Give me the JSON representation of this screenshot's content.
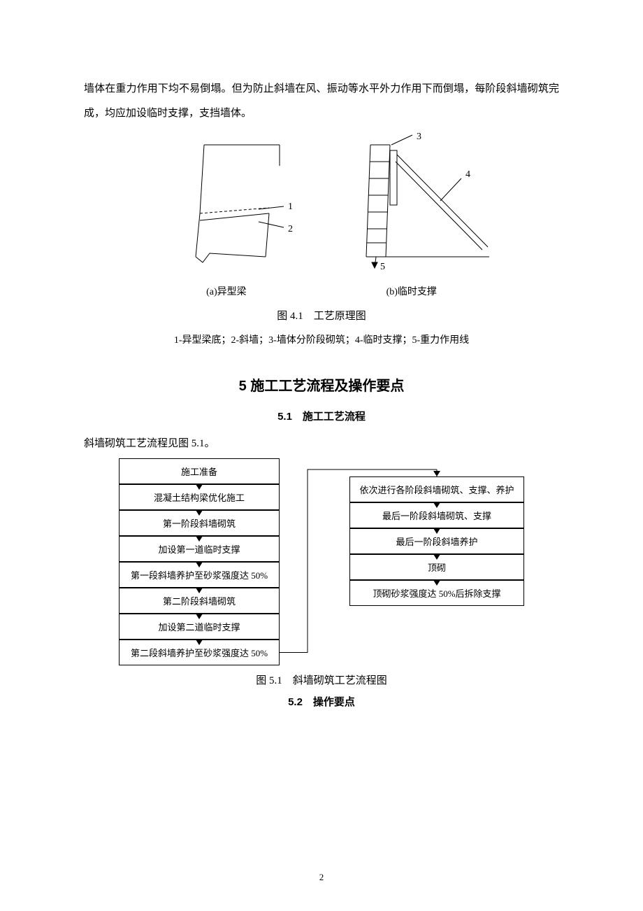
{
  "paragraph_intro": "墙体在重力作用下均不易倒塌。但为防止斜墙在风、振动等水平外力作用下而倒塌，每阶段斜墙砌筑完成，均应加设临时支撑，支挡墙体。",
  "fig41": {
    "caption_a": "(a)异型梁",
    "caption_b": "(b)临时支撑",
    "title": "图 4.1　工艺原理图",
    "legend": "1-异型梁底；2-斜墙；3-墙体分阶段砌筑；4-临时支撑；5-重力作用线",
    "label_1": "1",
    "label_2": "2",
    "label_3": "3",
    "label_4": "4",
    "label_5": "5",
    "diagram_a": {
      "stroke": "#000000",
      "stroke_width": 1
    },
    "diagram_b": {
      "stroke": "#000000",
      "stroke_width": 1
    }
  },
  "section5_heading": "5 施工工艺流程及操作要点",
  "section51_heading": "5.1　施工工艺流程",
  "para51": "斜墙砌筑工艺流程见图 5.1。",
  "flowchart": {
    "left": [
      "施工准备",
      "混凝土结构梁优化施工",
      "第一阶段斜墙砌筑",
      "加设第一道临时支撑",
      "第一段斜墙养护至砂浆强度达 50%",
      "第二阶段斜墙砌筑",
      "加设第二道临时支撑",
      "第二段斜墙养护至砂浆强度达 50%"
    ],
    "right": [
      "依次进行各阶段斜墙砌筑、支撑、养护",
      "最后一阶段斜墙砌筑、支撑",
      "最后一阶段斜墙养护",
      "顶砌",
      "顶砌砂浆强度达 50%后拆除支撑"
    ],
    "box_border": "#000000",
    "box_fontsize": 13,
    "left_box_width": 230,
    "right_box_width": 250,
    "arrow_gap": 18
  },
  "fig51_title": "图 5.1　斜墙砌筑工艺流程图",
  "section52_heading": "5.2　操作要点",
  "page_number": "2"
}
